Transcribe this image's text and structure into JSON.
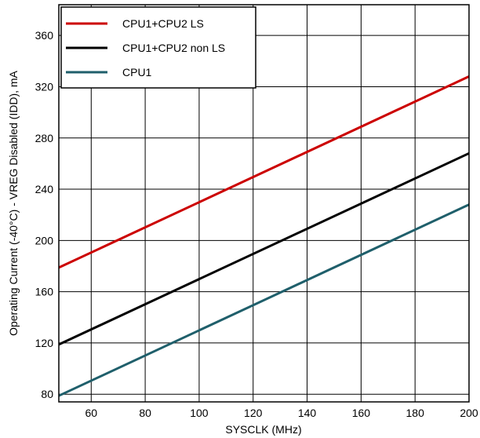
{
  "chart_data": {
    "type": "line",
    "xlabel": "SYSCLK (MHz)",
    "ylabel": "Operating Current (-40°C) - VREG Disabled (IDD), mA",
    "xlim": [
      48,
      200
    ],
    "ylim": [
      74,
      384
    ],
    "x_ticks": [
      60,
      80,
      100,
      120,
      140,
      160,
      180,
      200
    ],
    "y_ticks": [
      80,
      120,
      160,
      200,
      240,
      280,
      320,
      360
    ],
    "x_tick_labels": [
      "60",
      "80",
      "100",
      "120",
      "140",
      "160",
      "180",
      "200"
    ],
    "y_tick_labels": [
      "80",
      "120",
      "160",
      "200",
      "240",
      "280",
      "320",
      "360"
    ],
    "grid": true,
    "legend_position": "top-left",
    "series": [
      {
        "name": "CPU1+CPU2 LS",
        "color": "#cc0000",
        "x": [
          48,
          200
        ],
        "y": [
          178.8,
          328
        ]
      },
      {
        "name": "CPU1+CPU2 non LS",
        "color": "#000000",
        "x": [
          48,
          200
        ],
        "y": [
          118.8,
          268
        ]
      },
      {
        "name": "CPU1",
        "color": "#1f5f6b",
        "x": [
          48,
          200
        ],
        "y": [
          78.8,
          228
        ]
      }
    ]
  }
}
